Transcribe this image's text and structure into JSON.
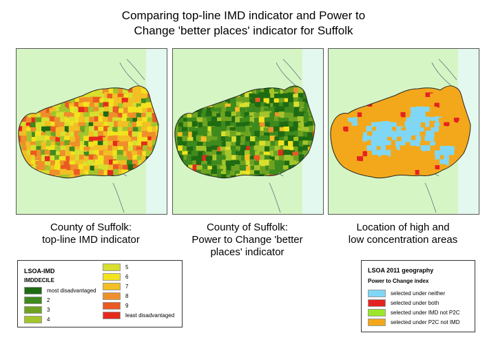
{
  "title": {
    "line1": "Comparing top-line IMD indicator and Power to",
    "line2": "Change 'better places' indicator for Suffolk"
  },
  "colors": {
    "land": "#d6f5c5",
    "sea": "#e3f8ee",
    "coast": "#55707a",
    "dec1": "#1e6b12",
    "dec2": "#3f8a1d",
    "dec3": "#6ea322",
    "dec4": "#a3c52b",
    "dec5": "#d7df2f",
    "dec6": "#f3e31e",
    "dec7": "#f2bf24",
    "dec8": "#ef8f2a",
    "dec9": "#ea5a22",
    "dec10": "#e52a1c",
    "neither": "#7fd7f5",
    "both": "#e52222",
    "imd_not_p2c": "#9be82a",
    "p2c_not_imd": "#f3a81c"
  },
  "maps": [
    {
      "caption_line1": "County of Suffolk:",
      "caption_line2": "top-line IMD indicator",
      "caption_line3": ""
    },
    {
      "caption_line1": "County of Suffolk:",
      "caption_line2": "Power to Change 'better",
      "caption_line3": "places' indicator"
    },
    {
      "caption_line1": "Location of high and",
      "caption_line2": "low concentration areas",
      "caption_line3": ""
    }
  ],
  "legend_imd": {
    "header1": "LSOA-IMD",
    "header2": "IMDDECILE",
    "items": [
      {
        "label": "most disadvantaged",
        "color": "#1e6b12"
      },
      {
        "label": "2",
        "color": "#3f8a1d"
      },
      {
        "label": "3",
        "color": "#6ea322"
      },
      {
        "label": "4",
        "color": "#a3c52b"
      },
      {
        "label": "5",
        "color": "#d7df2f"
      },
      {
        "label": "6",
        "color": "#f3e31e"
      },
      {
        "label": "7",
        "color": "#f2bf24"
      },
      {
        "label": "8",
        "color": "#ef8f2a"
      },
      {
        "label": "9",
        "color": "#ea5a22"
      },
      {
        "label": "least disadvantaged",
        "color": "#e52a1c"
      }
    ]
  },
  "legend_p2c": {
    "header1": "LSOA 2011 geography",
    "header2": "Power to Change index",
    "items": [
      {
        "label": "selected under neither",
        "color": "#7fd7f5"
      },
      {
        "label": "selected under both",
        "color": "#e52222"
      },
      {
        "label": "selected under IMD not P2C",
        "color": "#9be82a"
      },
      {
        "label": "selected under P2C not IMD",
        "color": "#f3a81c"
      }
    ]
  }
}
